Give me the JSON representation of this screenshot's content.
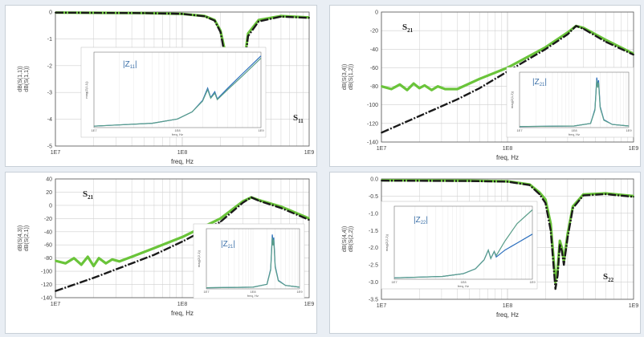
{
  "colors": {
    "measured": "#6ac43a",
    "model": "#1a1a1a",
    "inset_model": "#2a6ebd",
    "inset_measured": "#5a9e8a",
    "grid": "#cfcfcf"
  },
  "chart_data": [
    {
      "type": "line",
      "id": "s11",
      "xscale": "log",
      "xlim": [
        10000000,
        1000000000
      ],
      "ylim": [
        -5,
        0
      ],
      "xticks": [
        "1E7",
        "1E8",
        "1E9"
      ],
      "yticks": [
        "0",
        "-1",
        "-2",
        "-3",
        "-4",
        "-5"
      ],
      "xlabel": "freq, Hz",
      "ylabel_a": "dB(S(1,1))",
      "ylabel_b": "dB(S(1,1))",
      "annotation": "S11",
      "series": [
        {
          "role": "measured",
          "x": [
            10000000,
            50000000,
            100000000,
            150000000,
            180000000,
            200000000,
            220000000,
            240000000,
            250000000,
            260000000,
            270000000,
            280000000,
            300000000,
            330000000,
            400000000,
            600000000,
            1000000000
          ],
          "y": [
            -0.02,
            -0.04,
            -0.07,
            -0.15,
            -0.3,
            -0.7,
            -1.6,
            -3.3,
            -3.5,
            -3.1,
            -3.3,
            -3.6,
            -2.3,
            -0.8,
            -0.3,
            -0.15,
            -0.2
          ]
        },
        {
          "role": "model",
          "x": [
            10000000,
            50000000,
            100000000,
            150000000,
            180000000,
            200000000,
            220000000,
            240000000,
            250000000,
            260000000,
            270000000,
            280000000,
            300000000,
            330000000,
            400000000,
            600000000,
            1000000000
          ],
          "y": [
            -0.02,
            -0.04,
            -0.07,
            -0.16,
            -0.32,
            -0.75,
            -1.8,
            -3.7,
            -3.8,
            -3.3,
            -3.6,
            -4.1,
            -2.5,
            -0.9,
            -0.35,
            -0.17,
            -0.22
          ]
        }
      ],
      "inset": {
        "label_main": "|Z",
        "label_sub": "11",
        "xticks": [
          "1E7",
          "1E8",
          "1E9"
        ],
        "ylabel": "mag(Z(1,1))",
        "xlabel": "freq, Hz",
        "xlim": [
          10000000,
          1000000000
        ],
        "ylim": [
          0,
          1
        ],
        "series": [
          {
            "role": "inset_model",
            "x": [
              10000000,
              50000000,
              100000000,
              150000000,
              200000000,
              230000000,
              250000000,
              280000000,
              300000000,
              400000000,
              600000000,
              1000000000
            ],
            "y": [
              0.02,
              0.06,
              0.12,
              0.22,
              0.38,
              0.55,
              0.42,
              0.5,
              0.4,
              0.55,
              0.75,
              1.0
            ]
          },
          {
            "role": "inset_measured",
            "x": [
              10000000,
              50000000,
              100000000,
              150000000,
              200000000,
              230000000,
              250000000,
              280000000,
              300000000,
              400000000,
              600000000,
              1000000000
            ],
            "y": [
              0.02,
              0.06,
              0.12,
              0.22,
              0.37,
              0.53,
              0.41,
              0.48,
              0.39,
              0.53,
              0.72,
              0.97
            ]
          }
        ]
      }
    },
    {
      "type": "line",
      "id": "s21",
      "xscale": "log",
      "xlim": [
        10000000,
        1000000000
      ],
      "ylim": [
        -140,
        0
      ],
      "xticks": [
        "1E7",
        "1E8",
        "1E9"
      ],
      "yticks": [
        "0",
        "-20",
        "-40",
        "-60",
        "-80",
        "-100",
        "-120",
        "-140"
      ],
      "xlabel": "freq, Hz",
      "ylabel_a": "dB(S(3,4))",
      "ylabel_b": "dB(S(1,2))",
      "annotation": "S21",
      "series": [
        {
          "role": "measured",
          "x": [
            10000000,
            12000000,
            14000000,
            16000000,
            18000000,
            20000000,
            22000000,
            25000000,
            28000000,
            32000000,
            40000000,
            60000000,
            100000000,
            200000000,
            300000000,
            350000000,
            400000000,
            600000000,
            1000000000
          ],
          "y": [
            -80,
            -83,
            -78,
            -84,
            -77,
            -82,
            -79,
            -84,
            -80,
            -83,
            -83,
            -72,
            -60,
            -38,
            -22,
            -15,
            -17,
            -30,
            -45
          ]
        },
        {
          "role": "model",
          "x": [
            10000000,
            20000000,
            40000000,
            60000000,
            100000000,
            200000000,
            300000000,
            350000000,
            400000000,
            600000000,
            1000000000
          ],
          "y": [
            -130,
            -112,
            -94,
            -82,
            -64,
            -40,
            -24,
            -15,
            -18,
            -32,
            -46
          ]
        }
      ],
      "inset": {
        "label_main": "|Z",
        "label_sub": "21",
        "xticks": [
          "1E7",
          "1E8",
          "1E9"
        ],
        "ylabel": "mag(Z(1,2))",
        "xlabel": "freq, Hz",
        "xlim": [
          10000000,
          1000000000
        ],
        "ylim": [
          0,
          1
        ],
        "series": [
          {
            "role": "inset_model",
            "x": [
              10000000,
              100000000,
              200000000,
              240000000,
              260000000,
              270000000,
              280000000,
              300000000,
              350000000,
              500000000,
              1000000000
            ],
            "y": [
              0.02,
              0.03,
              0.08,
              0.35,
              0.95,
              0.8,
              0.9,
              0.4,
              0.15,
              0.06,
              0.03
            ]
          },
          {
            "role": "inset_measured",
            "x": [
              10000000,
              100000000,
              200000000,
              240000000,
              260000000,
              270000000,
              280000000,
              300000000,
              350000000,
              500000000,
              1000000000
            ],
            "y": [
              0.02,
              0.03,
              0.08,
              0.33,
              0.9,
              0.76,
              0.86,
              0.38,
              0.14,
              0.06,
              0.03
            ]
          }
        ]
      }
    },
    {
      "type": "line",
      "id": "s12",
      "xscale": "log",
      "xlim": [
        10000000,
        1000000000
      ],
      "ylim": [
        -140,
        40
      ],
      "xticks": [
        "1E7",
        "1E8",
        "1E9"
      ],
      "yticks": [
        "40",
        "20",
        "0",
        "-20",
        "-40",
        "-60",
        "-80",
        "-100",
        "-120",
        "-140"
      ],
      "xlabel": "freq, Hz",
      "ylabel_a": "dB(S(4,3))",
      "ylabel_b": "dB(S(2,1))",
      "annotation": "S21",
      "series": [
        {
          "role": "measured",
          "x": [
            10000000,
            12000000,
            14000000,
            16000000,
            18000000,
            20000000,
            22000000,
            25000000,
            28000000,
            32000000,
            40000000,
            60000000,
            100000000,
            200000000,
            300000000,
            350000000,
            400000000,
            600000000,
            1000000000
          ],
          "y": [
            -84,
            -88,
            -80,
            -90,
            -78,
            -92,
            -80,
            -88,
            -82,
            -85,
            -78,
            -65,
            -48,
            -20,
            6,
            12,
            8,
            -2,
            -20
          ]
        },
        {
          "role": "model",
          "x": [
            10000000,
            20000000,
            40000000,
            60000000,
            100000000,
            200000000,
            300000000,
            350000000,
            400000000,
            600000000,
            1000000000
          ],
          "y": [
            -130,
            -110,
            -88,
            -75,
            -55,
            -25,
            4,
            12,
            7,
            -4,
            -22
          ]
        }
      ],
      "inset": {
        "label_main": "|Z",
        "label_sub": "21",
        "xticks": [
          "1E7",
          "1E8",
          "1E9"
        ],
        "ylabel": "mag(Z(2,1))",
        "xlabel": "freq, Hz",
        "xlim": [
          10000000,
          1000000000
        ],
        "ylim": [
          0,
          1
        ],
        "series": [
          {
            "role": "inset_model",
            "x": [
              10000000,
              100000000,
              200000000,
              240000000,
              260000000,
              270000000,
              280000000,
              300000000,
              350000000,
              500000000,
              1000000000
            ],
            "y": [
              0.02,
              0.03,
              0.08,
              0.35,
              0.95,
              0.8,
              0.9,
              0.4,
              0.15,
              0.06,
              0.03
            ]
          },
          {
            "role": "inset_measured",
            "x": [
              10000000,
              100000000,
              200000000,
              240000000,
              260000000,
              270000000,
              280000000,
              300000000,
              350000000,
              500000000,
              1000000000
            ],
            "y": [
              0.02,
              0.03,
              0.08,
              0.33,
              0.9,
              0.76,
              0.86,
              0.38,
              0.14,
              0.06,
              0.03
            ]
          }
        ]
      }
    },
    {
      "type": "line",
      "id": "s22",
      "xscale": "log",
      "xlim": [
        10000000,
        1000000000
      ],
      "ylim": [
        -3.5,
        0
      ],
      "xticks": [
        "1E7",
        "1E8",
        "1E9"
      ],
      "yticks": [
        "0.0",
        "-0.5",
        "-1.0",
        "-1.5",
        "-2.0",
        "-2.5",
        "-3.0",
        "-3.5"
      ],
      "xlabel": "freq, Hz",
      "ylabel_a": "dB(S(4,4))",
      "ylabel_b": "dB(S(2,2))",
      "annotation": "S22",
      "series": [
        {
          "role": "measured",
          "x": [
            10000000,
            50000000,
            100000000,
            150000000,
            180000000,
            200000000,
            220000000,
            240000000,
            250000000,
            260000000,
            270000000,
            280000000,
            300000000,
            330000000,
            400000000,
            600000000,
            1000000000
          ],
          "y": [
            -0.04,
            -0.05,
            -0.07,
            -0.16,
            -0.4,
            -0.6,
            -1.3,
            -3.0,
            -2.6,
            -1.8,
            -2.0,
            -2.4,
            -1.6,
            -0.8,
            -0.45,
            -0.42,
            -0.5
          ]
        },
        {
          "role": "model",
          "x": [
            10000000,
            50000000,
            100000000,
            150000000,
            180000000,
            200000000,
            220000000,
            240000000,
            250000000,
            260000000,
            270000000,
            280000000,
            300000000,
            330000000,
            400000000,
            600000000,
            1000000000
          ],
          "y": [
            -0.05,
            -0.06,
            -0.08,
            -0.18,
            -0.45,
            -0.7,
            -1.5,
            -3.2,
            -2.8,
            -1.9,
            -2.1,
            -2.5,
            -1.7,
            -0.85,
            -0.48,
            -0.44,
            -0.52
          ]
        }
      ],
      "inset": {
        "label_main": "|Z",
        "label_sub": "22",
        "xticks": [
          "1E7",
          "1E8",
          "1E9"
        ],
        "ylabel": "mag(Z(2,2))",
        "xlabel": "freq, Hz",
        "xlim": [
          10000000,
          1000000000
        ],
        "ylim": [
          0,
          1
        ],
        "series": [
          {
            "role": "inset_model",
            "x": [
              10000000,
              50000000,
              100000000,
              150000000,
              200000000,
              230000000,
              250000000,
              280000000,
              300000000,
              400000000,
              600000000,
              1000000000
            ],
            "y": [
              0.02,
              0.04,
              0.08,
              0.15,
              0.28,
              0.42,
              0.3,
              0.4,
              0.32,
              0.42,
              0.52,
              0.65
            ]
          },
          {
            "role": "inset_measured",
            "x": [
              10000000,
              50000000,
              100000000,
              150000000,
              200000000,
              230000000,
              250000000,
              280000000,
              300000000,
              400000000,
              600000000,
              1000000000
            ],
            "y": [
              0.02,
              0.04,
              0.08,
              0.15,
              0.28,
              0.42,
              0.3,
              0.4,
              0.34,
              0.55,
              0.8,
              1.0
            ]
          }
        ]
      }
    }
  ]
}
